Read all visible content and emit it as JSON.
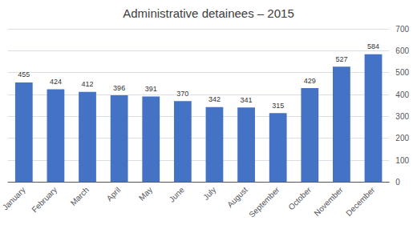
{
  "chart_data": {
    "type": "bar",
    "title": "Administrative detainees – 2015",
    "categories": [
      "January",
      "February",
      "March",
      "April",
      "May",
      "June",
      "July",
      "August",
      "September",
      "October",
      "November",
      "December"
    ],
    "values": [
      455,
      424,
      412,
      396,
      391,
      370,
      342,
      341,
      315,
      429,
      527,
      584
    ],
    "color": "#4472C4",
    "ylim": [
      0,
      700
    ],
    "yticks": [
      0,
      100,
      200,
      300,
      400,
      500,
      600,
      700
    ],
    "grid": true,
    "data_labels": true
  }
}
